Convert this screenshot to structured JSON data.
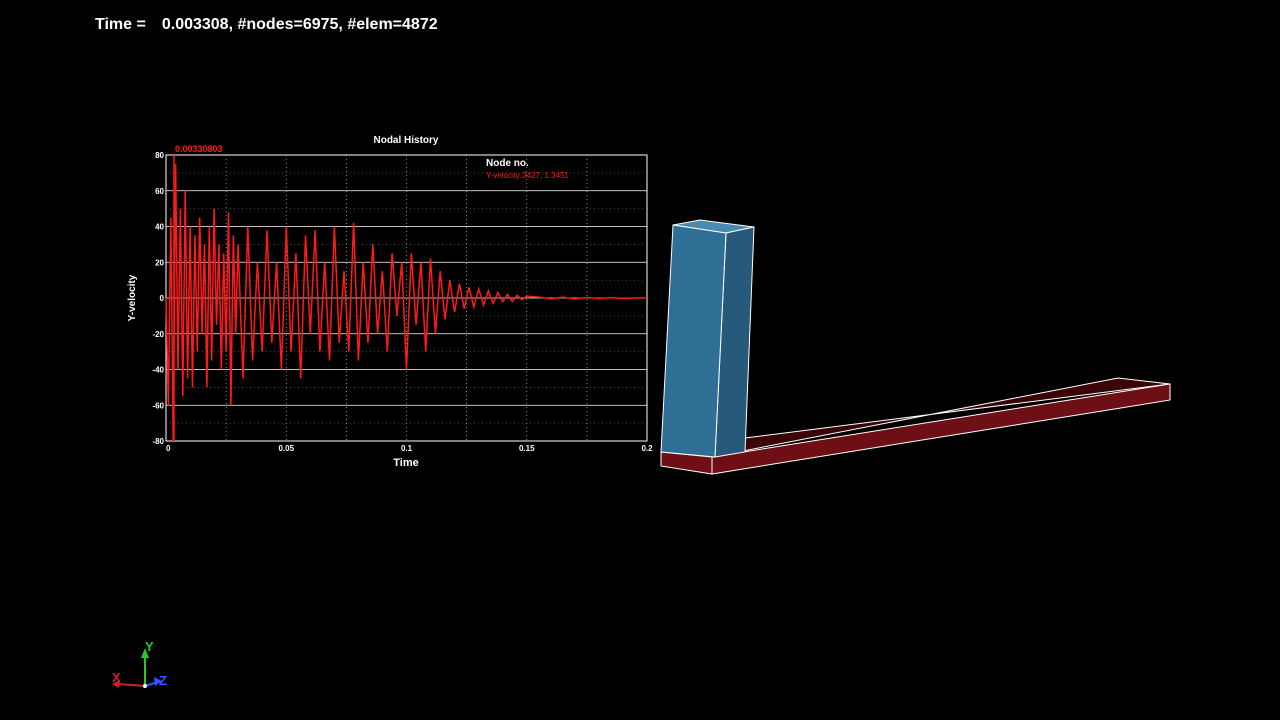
{
  "status": {
    "time_label": "Time =",
    "time_value": "0.003308, #nodes=6975, #elem=4872"
  },
  "plot": {
    "title": "Nodal History",
    "legend_title": "Node no.",
    "legend_entry": "Y-velocity:3427, 1.3451",
    "cursor_label": "0.00330803",
    "colors": {
      "curve": "#ff1a1a",
      "grid": "#ffffff",
      "background": "#000000"
    },
    "chart_data": {
      "type": "line",
      "title": "Nodal History",
      "xlabel": "Time",
      "ylabel": "Y-velocity",
      "xlim": [
        0,
        0.2
      ],
      "ylim": [
        -80,
        80
      ],
      "xticks": [
        0,
        0.05,
        0.1,
        0.15,
        0.2
      ],
      "xtick_labels": [
        "0",
        "0.05",
        "0.1",
        "0.15",
        "0.2"
      ],
      "yticks": [
        -80,
        -60,
        -40,
        -20,
        0,
        20,
        40,
        60,
        80
      ],
      "ytick_labels": [
        "-80",
        "-60",
        "-40",
        "-20",
        "0",
        "20",
        "40",
        "60",
        "80"
      ],
      "grid": true,
      "legend_placement": "top-right",
      "cursor_x": 0.00330803,
      "series": [
        {
          "name": "Y-velocity:3427, 1.3451",
          "x": [
            0,
            0.001,
            0.002,
            0.003,
            0.004,
            0.005,
            0.006,
            0.007,
            0.008,
            0.009,
            0.01,
            0.011,
            0.012,
            0.013,
            0.014,
            0.015,
            0.016,
            0.017,
            0.018,
            0.019,
            0.02,
            0.021,
            0.022,
            0.023,
            0.024,
            0.025,
            0.026,
            0.027,
            0.028,
            0.029,
            0.03,
            0.032,
            0.034,
            0.036,
            0.038,
            0.04,
            0.042,
            0.044,
            0.046,
            0.048,
            0.05,
            0.052,
            0.054,
            0.056,
            0.058,
            0.06,
            0.062,
            0.064,
            0.066,
            0.068,
            0.07,
            0.072,
            0.074,
            0.076,
            0.078,
            0.08,
            0.082,
            0.084,
            0.086,
            0.088,
            0.09,
            0.092,
            0.094,
            0.096,
            0.098,
            0.1,
            0.102,
            0.104,
            0.106,
            0.108,
            0.11,
            0.112,
            0.114,
            0.116,
            0.118,
            0.12,
            0.122,
            0.124,
            0.126,
            0.128,
            0.13,
            0.132,
            0.134,
            0.136,
            0.138,
            0.14,
            0.142,
            0.144,
            0.146,
            0.148,
            0.15,
            0.155,
            0.16,
            0.165,
            0.17,
            0.175,
            0.18,
            0.185,
            0.19,
            0.195,
            0.2
          ],
          "values": [
            0,
            -60,
            45,
            -80,
            75,
            -40,
            50,
            -55,
            60,
            -45,
            40,
            -50,
            35,
            -30,
            45,
            -20,
            30,
            -50,
            40,
            -35,
            50,
            -15,
            30,
            -40,
            25,
            -30,
            48,
            -60,
            35,
            -20,
            30,
            -45,
            40,
            -35,
            20,
            -30,
            38,
            -25,
            20,
            -40,
            40,
            -30,
            25,
            -45,
            35,
            -20,
            38,
            -30,
            20,
            -35,
            40,
            -25,
            15,
            -30,
            42,
            -35,
            20,
            -25,
            30,
            -20,
            15,
            -30,
            25,
            -10,
            20,
            -40,
            25,
            -15,
            20,
            -30,
            22,
            -20,
            15,
            -12,
            10,
            -8,
            8,
            -6,
            6,
            -5,
            5,
            -4,
            4,
            -3,
            3,
            -2,
            2,
            -2,
            1.5,
            -1,
            1,
            0.5,
            -0.5,
            0.5,
            -0.5,
            0.3,
            -0.3,
            0.2,
            -0.2,
            0,
            0
          ]
        }
      ]
    }
  },
  "axes_triad": {
    "x_label": "X",
    "y_label": "Y",
    "z_label": "Z",
    "colors": {
      "x": "#cc2222",
      "y": "#22cc22",
      "z": "#3355ff"
    }
  },
  "model": {
    "colors": {
      "block_front": "#2f6f96",
      "block_side": "#275a7a",
      "block_top": "#4a8ab0",
      "beam_face": "#6e0f16",
      "beam_top": "#3a0509",
      "edge": "#ffffff"
    }
  }
}
